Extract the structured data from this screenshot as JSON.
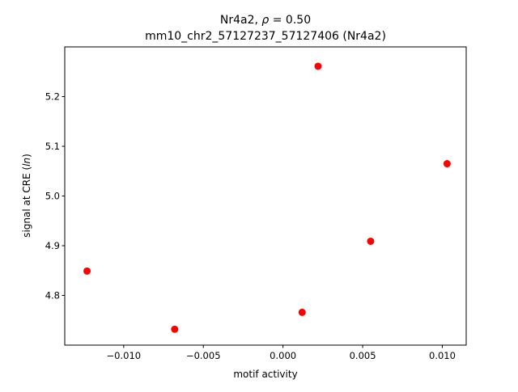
{
  "chart_data": {
    "type": "scatter",
    "title_line1_prefix": "Nr4a2, ",
    "title_line1_rho": "ρ",
    "title_line1_suffix": " = 0.50",
    "title_line2": "mm10_chr2_57127237_57127406 (Nr4a2)",
    "xlabel": "motif activity",
    "ylabel_prefix": "signal at CRE (",
    "ylabel_italic": "ln",
    "ylabel_suffix": ")",
    "xlim": [
      -0.0137,
      0.0115
    ],
    "ylim": [
      4.7,
      5.3
    ],
    "x_ticks": [
      {
        "value": -0.01,
        "label": "−0.010"
      },
      {
        "value": -0.005,
        "label": "−0.005"
      },
      {
        "value": 0.0,
        "label": "0.000"
      },
      {
        "value": 0.005,
        "label": "0.005"
      },
      {
        "value": 0.01,
        "label": "0.010"
      }
    ],
    "y_ticks": [
      {
        "value": 4.8,
        "label": "4.8"
      },
      {
        "value": 4.9,
        "label": "4.9"
      },
      {
        "value": 5.0,
        "label": "5.0"
      },
      {
        "value": 5.1,
        "label": "5.1"
      },
      {
        "value": 5.2,
        "label": "5.2"
      }
    ],
    "points": [
      {
        "x": -0.0123,
        "y": 4.849
      },
      {
        "x": -0.0068,
        "y": 4.732
      },
      {
        "x": 0.0012,
        "y": 4.766
      },
      {
        "x": 0.0022,
        "y": 5.261
      },
      {
        "x": 0.0055,
        "y": 4.909
      },
      {
        "x": 0.0103,
        "y": 5.065
      }
    ],
    "point_color": "#ff0000",
    "grid": false
  }
}
